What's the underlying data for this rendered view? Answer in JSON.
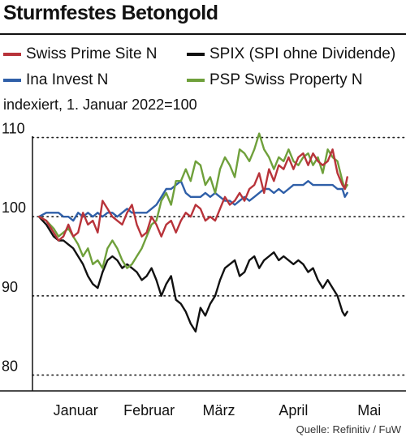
{
  "title": "Sturmfestes Betongold",
  "subtitle": "indexiert, 1. Januar 2022=100",
  "source": "Quelle: Refinitiv / FuW",
  "chart_data": {
    "type": "line",
    "ylim": [
      78,
      112
    ],
    "yticks": [
      80,
      90,
      100,
      110
    ],
    "xlim": [
      0,
      150
    ],
    "xticks": [
      {
        "label": "Januar",
        "x": 15
      },
      {
        "label": "Februar",
        "x": 45
      },
      {
        "label": "März",
        "x": 73.5
      },
      {
        "label": "April",
        "x": 104
      },
      {
        "label": "Mai",
        "x": 135
      }
    ],
    "grid": "horizontal dotted",
    "legend_position": "top",
    "series": [
      {
        "name": "Swiss Prime Site N",
        "color": "#b8333a",
        "x": [
          0,
          3,
          6,
          8,
          10,
          12,
          14,
          16,
          18,
          20,
          22,
          24,
          26,
          28,
          30,
          32,
          34,
          36,
          38,
          40,
          42,
          44,
          46,
          48,
          50,
          52,
          54,
          56,
          58,
          60,
          62,
          64,
          66,
          68,
          70,
          72,
          74,
          76,
          78,
          80,
          82,
          84,
          86,
          88,
          90,
          92,
          94,
          96,
          98,
          100,
          102,
          104,
          106,
          108,
          110,
          112,
          114,
          116,
          118,
          120,
          122,
          124,
          125,
          126
        ],
        "y": [
          100,
          99.5,
          98,
          97,
          97.5,
          99,
          97.5,
          98,
          100.5,
          99,
          99.5,
          98,
          102,
          101,
          100,
          99.5,
          99,
          100.5,
          101.5,
          99,
          97.5,
          98,
          100,
          99,
          97.5,
          99,
          99.5,
          98,
          99.5,
          100.5,
          100,
          101.5,
          101,
          99.5,
          100,
          99.5,
          101,
          102.5,
          101.5,
          102,
          103,
          102,
          103.5,
          104,
          105.5,
          103,
          106,
          104.5,
          106.5,
          106,
          107.5,
          106,
          107.5,
          108,
          106.5,
          108,
          107,
          106.5,
          107,
          108.5,
          105.5,
          104,
          103.5,
          105
        ]
      },
      {
        "name": "Ina Invest N",
        "color": "#2f5fa8",
        "x": [
          0,
          3,
          6,
          8,
          10,
          12,
          14,
          16,
          18,
          20,
          22,
          24,
          26,
          28,
          30,
          32,
          34,
          36,
          38,
          40,
          42,
          44,
          46,
          48,
          50,
          52,
          54,
          56,
          58,
          60,
          62,
          64,
          66,
          68,
          70,
          72,
          74,
          76,
          78,
          80,
          82,
          84,
          86,
          88,
          90,
          92,
          94,
          96,
          98,
          100,
          102,
          104,
          106,
          108,
          110,
          112,
          114,
          116,
          118,
          120,
          122,
          124,
          125,
          126
        ],
        "y": [
          100,
          100.5,
          100.5,
          100.5,
          100,
          100,
          99.5,
          100.5,
          100,
          100.5,
          100,
          100.5,
          100,
          100.5,
          100.5,
          100,
          100.5,
          101,
          100.5,
          100.5,
          100.5,
          100.5,
          101,
          101.5,
          102.5,
          103.5,
          103.5,
          104,
          104.5,
          103,
          102.5,
          102.5,
          102.5,
          103,
          102.5,
          103,
          102.5,
          102,
          102,
          101.5,
          102,
          102.5,
          102,
          102.5,
          103,
          103.5,
          103.5,
          103,
          103.5,
          103,
          103.5,
          104,
          104,
          104,
          104.5,
          104,
          104,
          104,
          104,
          104,
          103.5,
          103.5,
          102.5,
          103
        ]
      },
      {
        "name": "SPIX (SPI ohne Dividende)",
        "color": "#111111",
        "x": [
          0,
          3,
          6,
          8,
          10,
          12,
          14,
          16,
          18,
          20,
          22,
          24,
          26,
          28,
          30,
          32,
          34,
          36,
          38,
          40,
          42,
          44,
          46,
          48,
          50,
          52,
          54,
          56,
          58,
          60,
          62,
          64,
          66,
          68,
          70,
          72,
          74,
          76,
          78,
          80,
          82,
          84,
          86,
          88,
          90,
          92,
          94,
          96,
          98,
          100,
          102,
          104,
          106,
          108,
          110,
          112,
          114,
          116,
          118,
          120,
          122,
          124,
          125,
          126
        ],
        "y": [
          100,
          99,
          97.5,
          97,
          97,
          96.5,
          96,
          95,
          94,
          92.5,
          91.5,
          91,
          93,
          94.5,
          95,
          94.5,
          93.5,
          94,
          93.5,
          93,
          92,
          92.5,
          93.5,
          92,
          90,
          91.5,
          92.5,
          89.5,
          89,
          88,
          86.5,
          85.5,
          88.5,
          87.5,
          89,
          90,
          92,
          93.5,
          94,
          94.5,
          92.5,
          93,
          94.5,
          95,
          93.5,
          94.5,
          95,
          95.5,
          94.5,
          95,
          94.5,
          94,
          94.5,
          94,
          93,
          93.5,
          92,
          91,
          92,
          91,
          90,
          88,
          87.5,
          88
        ]
      },
      {
        "name": "PSP Swiss Property N",
        "color": "#6fa03b",
        "x": [
          0,
          3,
          6,
          8,
          10,
          12,
          14,
          16,
          18,
          20,
          22,
          24,
          26,
          28,
          30,
          32,
          34,
          36,
          38,
          40,
          42,
          44,
          46,
          48,
          50,
          52,
          54,
          56,
          58,
          60,
          62,
          64,
          66,
          68,
          70,
          72,
          74,
          76,
          78,
          80,
          82,
          84,
          86,
          88,
          90,
          92,
          94,
          96,
          98,
          100,
          102,
          104,
          106,
          108,
          110,
          112,
          114,
          116,
          118,
          120,
          122,
          124,
          125,
          126
        ],
        "y": [
          100,
          99.5,
          98.5,
          97.5,
          98,
          98.5,
          97.5,
          96.5,
          95,
          96,
          94,
          94.5,
          93.5,
          96,
          97,
          96,
          94.5,
          93.5,
          94,
          95,
          96,
          97.5,
          99,
          99.5,
          102,
          103,
          101.5,
          104.5,
          104.5,
          106,
          104.5,
          107,
          106.5,
          104,
          105,
          103,
          106,
          107.5,
          106.5,
          105,
          108.5,
          108,
          107,
          108.5,
          110.5,
          108.5,
          107.5,
          106,
          107.5,
          107,
          108.5,
          107,
          106.5,
          107.5,
          108,
          106.5,
          107.5,
          105.5,
          108.5,
          107.5,
          107,
          104.5,
          103.5,
          104
        ]
      }
    ]
  }
}
